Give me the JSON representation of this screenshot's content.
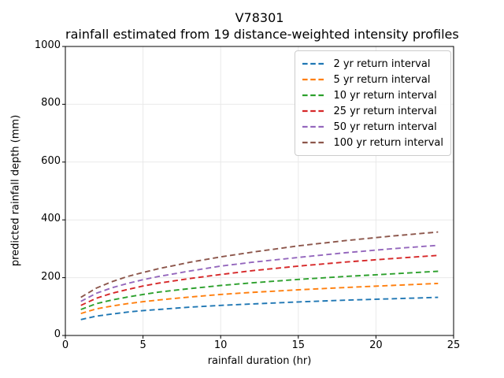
{
  "chart_data": {
    "type": "line",
    "title": "V78301",
    "subtitle": "rainfall estimated from 19 distance-weighted intensity profiles",
    "xlabel": "rainfall duration (hr)",
    "ylabel": "predicted rainfall depth (mm)",
    "xlim": [
      0,
      25
    ],
    "ylim": [
      0,
      1000
    ],
    "xticks": [
      0,
      5,
      10,
      15,
      20,
      25
    ],
    "yticks": [
      0,
      200,
      400,
      600,
      800,
      1000
    ],
    "grid": true,
    "grid_color": "#e9e9e9",
    "line_style": "dashed",
    "legend_position": "upper right",
    "x": [
      1,
      2,
      3,
      4,
      5,
      6,
      8,
      10,
      12,
      15,
      18,
      21,
      24
    ],
    "series": [
      {
        "name": "2 yr return interval",
        "color": "#1f77b4",
        "values": [
          55,
          67,
          74,
          81,
          86,
          90,
          98,
          104,
          109,
          116,
          122,
          127,
          132
        ]
      },
      {
        "name": "5 yr return interval",
        "color": "#ff7f0e",
        "values": [
          76,
          92,
          102,
          110,
          117,
          123,
          133,
          142,
          149,
          158,
          166,
          173,
          180
        ]
      },
      {
        "name": "10 yr return interval",
        "color": "#2ca02c",
        "values": [
          90,
          110,
          123,
          133,
          142,
          150,
          162,
          173,
          182,
          194,
          204,
          213,
          222
        ]
      },
      {
        "name": "25 yr return interval",
        "color": "#d62728",
        "values": [
          104,
          129,
          146,
          159,
          171,
          181,
          197,
          211,
          224,
          240,
          254,
          266,
          277
        ]
      },
      {
        "name": "50 yr return interval",
        "color": "#9467bd",
        "values": [
          118,
          146,
          165,
          180,
          193,
          204,
          223,
          240,
          253,
          270,
          286,
          300,
          312
        ]
      },
      {
        "name": "100 yr return interval",
        "color": "#8c564b",
        "values": [
          132,
          164,
          186,
          204,
          218,
          231,
          253,
          272,
          288,
          310,
          328,
          344,
          358
        ]
      }
    ]
  }
}
